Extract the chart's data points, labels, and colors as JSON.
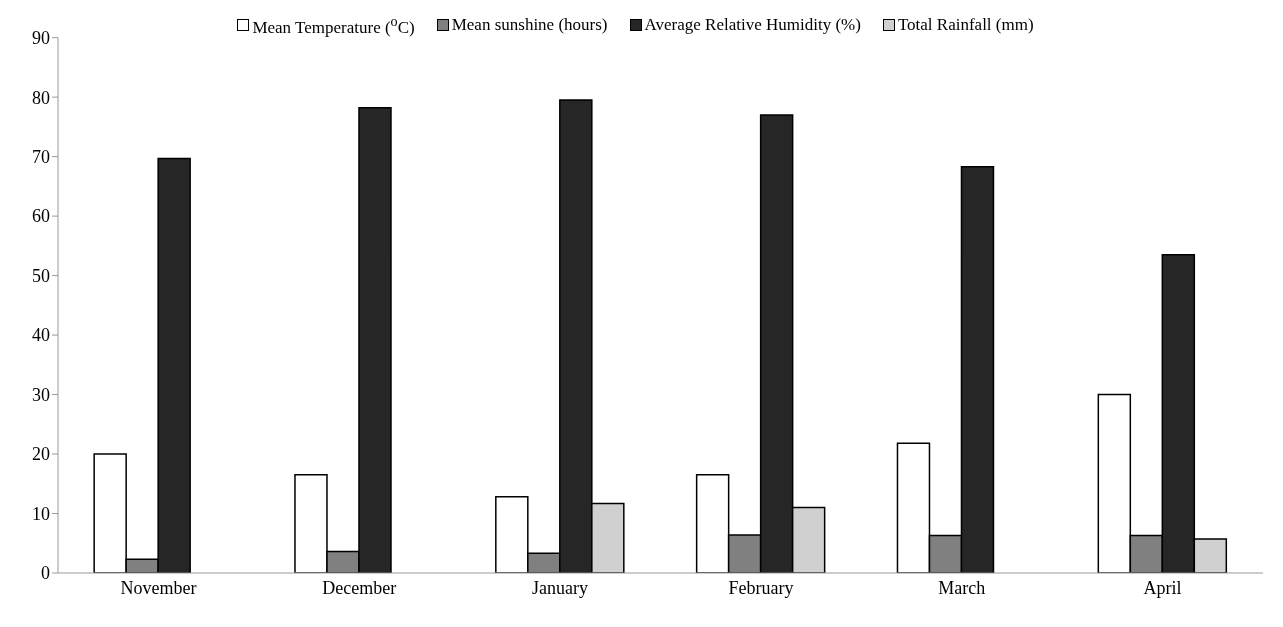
{
  "chart_data": {
    "type": "bar",
    "categories": [
      "November",
      "December",
      "January",
      "February",
      "March",
      "April"
    ],
    "series": [
      {
        "name": "Mean Temperature ($^{o}$C)",
        "color": "#ffffff",
        "values": [
          20,
          16.5,
          12.8,
          16.5,
          21.8,
          30
        ]
      },
      {
        "name": "Mean sunshine (hours)",
        "color": "#808080",
        "values": [
          2.3,
          3.6,
          3.3,
          6.4,
          6.3,
          6.3
        ]
      },
      {
        "name": "Average Relative Humidity (%)",
        "color": "#262626",
        "values": [
          69.7,
          78.2,
          79.5,
          77.0,
          68.3,
          53.5
        ]
      },
      {
        "name": "Total Rainfall (mm)",
        "color": "#d0d0d0",
        "values": [
          0,
          0,
          11.7,
          11.0,
          0,
          5.7
        ]
      }
    ],
    "ylim": [
      0,
      90
    ],
    "yticks": [
      0,
      10,
      20,
      30,
      40,
      50,
      60,
      70,
      80,
      90
    ],
    "grid": false,
    "legend": "top"
  }
}
